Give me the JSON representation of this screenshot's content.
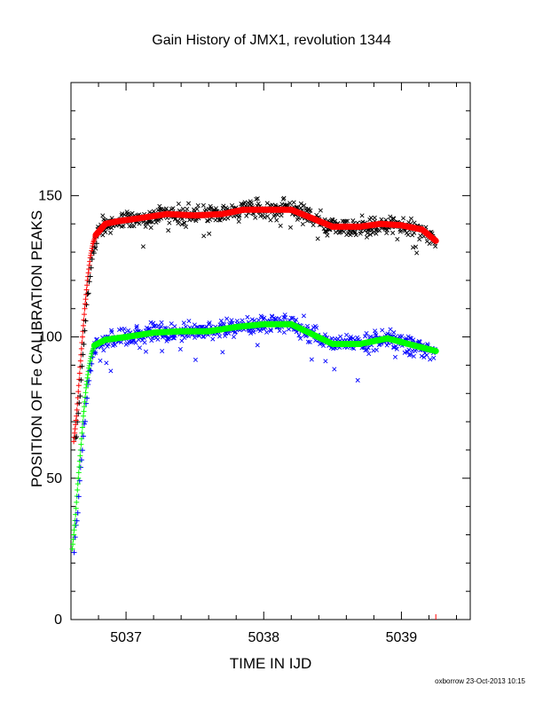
{
  "chart_data": {
    "type": "scatter",
    "title": "Gain History of JMX1, revolution 1344",
    "xlabel": "TIME IN IJD",
    "ylabel": "POSITION OF Fe CALIBRATION PEAKS",
    "xlim": [
      5036.6,
      5039.5
    ],
    "ylim": [
      0,
      190
    ],
    "xticks_major": [
      5037,
      5038,
      5039
    ],
    "xticks_minor": [
      5036.6,
      5036.8,
      5037.2,
      5037.4,
      5037.6,
      5037.8,
      5038.2,
      5038.4,
      5038.6,
      5038.8,
      5039.2,
      5039.4
    ],
    "yticks_labeled": [
      0,
      50,
      100,
      150
    ],
    "yticks_minor": [
      10,
      20,
      30,
      40,
      60,
      70,
      80,
      90,
      110,
      120,
      130,
      140,
      160,
      170,
      180
    ],
    "grid": false,
    "series": [
      {
        "color": "#000000",
        "marker": "x",
        "trend_color": "#ff0000",
        "rise_marker": "+",
        "rise": [
          [
            5036.62,
            63
          ],
          [
            5036.64,
            72
          ],
          [
            5036.66,
            85
          ],
          [
            5036.68,
            98
          ],
          [
            5036.7,
            110
          ],
          [
            5036.72,
            120
          ],
          [
            5036.74,
            128
          ],
          [
            5036.76,
            133
          ],
          [
            5036.78,
            136
          ]
        ],
        "trend": [
          [
            5036.78,
            136
          ],
          [
            5036.85,
            140
          ],
          [
            5036.95,
            141
          ],
          [
            5037.1,
            142
          ],
          [
            5037.3,
            143.5
          ],
          [
            5037.5,
            143
          ],
          [
            5037.7,
            143.5
          ],
          [
            5037.85,
            145
          ],
          [
            5038.0,
            145
          ],
          [
            5038.2,
            145
          ],
          [
            5038.35,
            142
          ],
          [
            5038.5,
            139
          ],
          [
            5038.7,
            139
          ],
          [
            5038.85,
            140
          ],
          [
            5039.0,
            139.5
          ],
          [
            5039.15,
            138
          ],
          [
            5039.25,
            134
          ]
        ]
      },
      {
        "color": "#0000ff",
        "marker": "x",
        "trend_color": "#00ff00",
        "rise_marker": "+",
        "rise": [
          [
            5036.61,
            25
          ],
          [
            5036.63,
            35
          ],
          [
            5036.65,
            48
          ],
          [
            5036.67,
            60
          ],
          [
            5036.69,
            72
          ],
          [
            5036.71,
            82
          ],
          [
            5036.73,
            89
          ],
          [
            5036.75,
            94
          ],
          [
            5036.77,
            97
          ]
        ],
        "trend": [
          [
            5036.77,
            97
          ],
          [
            5036.85,
            99
          ],
          [
            5037.0,
            100
          ],
          [
            5037.2,
            101.5
          ],
          [
            5037.4,
            102
          ],
          [
            5037.6,
            102
          ],
          [
            5037.8,
            103.5
          ],
          [
            5038.0,
            104.5
          ],
          [
            5038.2,
            104.5
          ],
          [
            5038.35,
            101
          ],
          [
            5038.5,
            97.5
          ],
          [
            5038.7,
            97.5
          ],
          [
            5038.9,
            99.5
          ],
          [
            5039.05,
            97.5
          ],
          [
            5039.25,
            95
          ]
        ]
      }
    ]
  },
  "footer": "oxborrow 23-Oct-2013 10:15"
}
